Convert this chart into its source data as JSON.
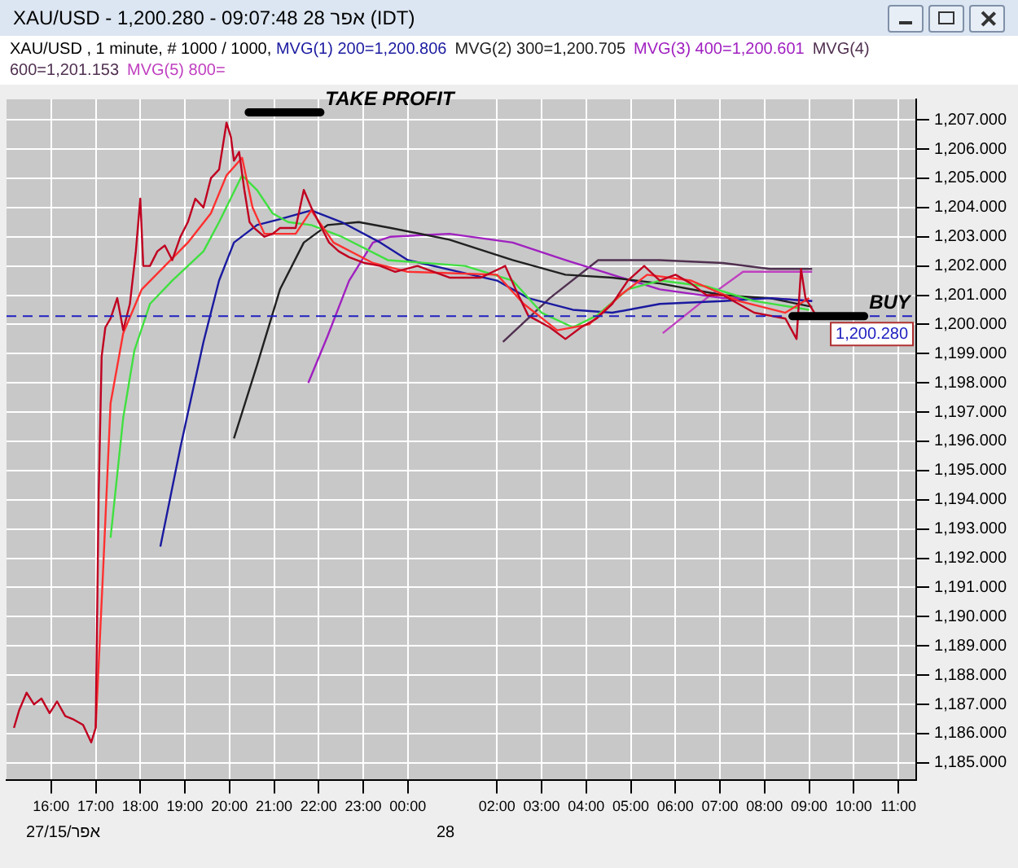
{
  "chart_data": {
    "type": "line",
    "title": "XAU/USD - 1,200.280 - 09:07:48 28 אפר (IDT)",
    "subtitle": "XAU/USD , 1 minute, # 1000 / 1000,",
    "legend": "top",
    "grid": true,
    "marker": "none",
    "line_style": "solid",
    "xlim": [
      "--04-27T15:00",
      "--04-28T11:24"
    ],
    "xticks": [
      {
        "value": "--04-27T16:00",
        "label": "16:00"
      },
      {
        "value": "--04-27T17:00",
        "label": "17:00"
      },
      {
        "value": "--04-27T18:00",
        "label": "18:00"
      },
      {
        "value": "--04-27T19:00",
        "label": "19:00"
      },
      {
        "value": "--04-27T20:00",
        "label": "20:00"
      },
      {
        "value": "--04-27T21:00",
        "label": "21:00"
      },
      {
        "value": "--04-27T22:00",
        "label": "22:00"
      },
      {
        "value": "--04-27T23:00",
        "label": "23:00"
      },
      {
        "value": "--04-28T00:00",
        "label": "00:00"
      },
      {
        "value": "--04-28T02:00",
        "label": "02:00"
      },
      {
        "value": "--04-28T03:00",
        "label": "03:00"
      },
      {
        "value": "--04-28T04:00",
        "label": "04:00"
      },
      {
        "value": "--04-28T05:00",
        "label": "05:00"
      },
      {
        "value": "--04-28T06:00",
        "label": "06:00"
      },
      {
        "value": "--04-28T07:00",
        "label": "07:00"
      },
      {
        "value": "--04-28T08:00",
        "label": "08:00"
      },
      {
        "value": "--04-28T09:00",
        "label": "09:00"
      },
      {
        "value": "--04-28T10:00",
        "label": "10:00"
      },
      {
        "value": "--04-28T11:00",
        "label": "11:00"
      }
    ],
    "ylim": [
      1184.4,
      1207.7
    ],
    "yticks": [
      {
        "value": 1185,
        "label": "1,185.000"
      },
      {
        "value": 1186,
        "label": "1,186.000"
      },
      {
        "value": 1187,
        "label": "1,187.000"
      },
      {
        "value": 1188,
        "label": "1,188.000"
      },
      {
        "value": 1189,
        "label": "1,189.000"
      },
      {
        "value": 1190,
        "label": "1,190.000"
      },
      {
        "value": 1191,
        "label": "1,191.000"
      },
      {
        "value": 1192,
        "label": "1,192.000"
      },
      {
        "value": 1193,
        "label": "1,193.000"
      },
      {
        "value": 1194,
        "label": "1,194.000"
      },
      {
        "value": 1195,
        "label": "1,195.000"
      },
      {
        "value": 1196,
        "label": "1,196.000"
      },
      {
        "value": 1197,
        "label": "1,197.000"
      },
      {
        "value": 1198,
        "label": "1,198.000"
      },
      {
        "value": 1199,
        "label": "1,199.000"
      },
      {
        "value": 1200,
        "label": "1,200.000"
      },
      {
        "value": 1201,
        "label": "1,201.000"
      },
      {
        "value": 1202,
        "label": "1,202.000"
      },
      {
        "value": 1203,
        "label": "1,203.000"
      },
      {
        "value": 1204,
        "label": "1,204.000"
      },
      {
        "value": 1205,
        "label": "1,205.000"
      },
      {
        "value": 1206,
        "label": "1,206.000"
      },
      {
        "value": 1207,
        "label": "1,207.000"
      }
    ],
    "ref_lines": [
      {
        "axis": "y",
        "value": 1200.28,
        "label": "1,200.280",
        "color": "#2020c0",
        "line_style": "dashed"
      }
    ],
    "annotations": [
      "TAKE PROFIT",
      {
        "text": "BUY",
        "x": "--04-28T10:14",
        "y": 1200.28
      },
      "27/15/אפר",
      "28"
    ],
    "series": [
      {
        "color": "#c00020",
        "x": [
          "--04-27T15:10",
          "--04-27T15:17",
          "--04-27T15:27",
          "--04-27T15:37",
          "--04-27T15:47",
          "--04-27T15:58",
          "--04-27T16:08",
          "--04-27T16:19",
          "--04-27T16:29",
          "--04-27T16:43",
          "--04-27T16:54",
          "--04-27T17:00",
          "--04-27T17:04",
          "--04-27T17:08",
          "--04-27T17:13",
          "--04-27T17:20",
          "--04-27T17:29",
          "--04-27T17:37",
          "--04-27T17:46",
          "--04-27T17:54",
          "--04-27T18:00",
          "--04-27T18:04",
          "--04-27T18:13",
          "--04-27T18:23",
          "--04-27T18:33",
          "--04-27T18:43",
          "--04-27T18:54",
          "--04-27T19:04",
          "--04-27T19:14",
          "--04-27T19:25",
          "--04-27T19:35",
          "--04-27T19:46",
          "--04-27T19:56",
          "--04-27T20:02",
          "--04-27T20:06",
          "--04-27T20:13",
          "--04-27T20:20",
          "--04-27T20:27",
          "--04-27T20:33",
          "--04-27T20:47",
          "--04-27T20:58",
          "--04-27T21:08",
          "--04-27T21:29",
          "--04-27T21:40",
          "--04-27T21:50",
          "--04-27T22:00",
          "--04-27T22:14",
          "--04-27T22:27",
          "--04-27T22:41",
          "--04-27T23:02",
          "--04-27T23:23",
          "--04-27T23:43",
          "--04-28T00:13",
          "--04-28T00:56",
          "--04-28T01:38",
          "--04-28T02:11",
          "--04-28T02:25",
          "--04-28T02:42",
          "--04-28T03:11",
          "--04-28T03:32",
          "--04-28T03:53",
          "--04-28T04:14",
          "--04-28T04:35",
          "--04-28T04:48",
          "--04-28T04:56",
          "--04-28T05:18",
          "--04-28T05:39",
          "--04-28T06:00",
          "--04-28T06:21",
          "--04-28T06:42",
          "--04-28T07:04",
          "--04-28T07:25",
          "--04-28T07:46",
          "--04-28T08:07",
          "--04-28T08:28",
          "--04-28T08:43",
          "--04-28T08:49",
          "--04-28T08:55",
          "--04-28T09:07"
        ],
        "values": [
          1186.2,
          1186.8,
          1187.4,
          1187.0,
          1187.2,
          1186.7,
          1187.1,
          1186.6,
          1186.5,
          1186.3,
          1185.7,
          1186.2,
          1194.2,
          1198.9,
          1199.9,
          1200.2,
          1200.9,
          1199.8,
          1200.7,
          1202.5,
          1204.3,
          1202.0,
          1202.0,
          1202.5,
          1202.7,
          1202.2,
          1203.0,
          1203.5,
          1204.3,
          1204.0,
          1205.0,
          1205.3,
          1206.9,
          1206.4,
          1205.6,
          1205.9,
          1204.6,
          1203.5,
          1203.3,
          1203.0,
          1203.1,
          1203.3,
          1203.3,
          1204.6,
          1204.0,
          1203.5,
          1202.8,
          1202.5,
          1202.3,
          1202.1,
          1202.0,
          1201.8,
          1202.0,
          1201.6,
          1201.6,
          1202.0,
          1201.2,
          1200.3,
          1199.9,
          1199.5,
          1199.9,
          1200.2,
          1200.7,
          1201.2,
          1201.5,
          1202.0,
          1201.5,
          1201.7,
          1201.4,
          1201.0,
          1201.0,
          1200.7,
          1200.4,
          1200.3,
          1200.2,
          1199.5,
          1201.9,
          1200.9,
          1200.4
        ]
      },
      {
        "color": "#ff3030",
        "x": [
          "--04-27T17:00",
          "--04-27T17:10",
          "--04-27T17:20",
          "--04-27T17:37",
          "--04-27T18:02",
          "--04-27T18:33",
          "--04-27T19:04",
          "--04-27T19:35",
          "--04-27T19:56",
          "--04-27T20:17",
          "--04-27T20:31",
          "--04-27T20:47",
          "--04-27T21:29",
          "--04-27T21:50",
          "--04-27T22:20",
          "--04-27T23:13",
          "--04-28T00:00",
          "--04-28T02:00",
          "--04-28T02:36",
          "--04-28T03:21",
          "--04-28T04:04",
          "--04-28T04:46",
          "--04-28T05:22",
          "--04-28T06:21",
          "--04-28T07:25",
          "--04-28T08:28",
          "--04-28T09:00"
        ],
        "values": [
          1186.2,
          1191.6,
          1197.3,
          1199.7,
          1201.2,
          1202.0,
          1202.8,
          1203.8,
          1205.1,
          1205.7,
          1204.0,
          1203.1,
          1203.1,
          1203.9,
          1202.8,
          1202.1,
          1201.8,
          1201.7,
          1200.7,
          1199.8,
          1200.0,
          1201.0,
          1201.7,
          1201.5,
          1200.8,
          1200.4,
          1200.9
        ]
      },
      {
        "color": "#40e040",
        "x": [
          "--04-27T17:20",
          "--04-27T17:37",
          "--04-27T17:52",
          "--04-27T18:13",
          "--04-27T18:43",
          "--04-27T19:25",
          "--04-27T19:46",
          "--04-27T20:17",
          "--04-27T20:37",
          "--04-27T20:58",
          "--04-27T21:19",
          "--04-27T21:50",
          "--04-27T22:31",
          "--04-27T23:33",
          "--04-28T01:17",
          "--04-28T02:21",
          "--04-28T03:00",
          "--04-28T03:42",
          "--04-28T04:14",
          "--04-28T04:56",
          "--04-28T05:39",
          "--04-28T06:42",
          "--04-28T07:46",
          "--04-28T09:00"
        ],
        "values": [
          1192.7,
          1196.8,
          1199.1,
          1200.7,
          1201.5,
          1202.5,
          1203.5,
          1205.1,
          1204.6,
          1203.8,
          1203.5,
          1203.4,
          1203.0,
          1202.2,
          1202.0,
          1201.5,
          1200.4,
          1199.9,
          1200.3,
          1201.2,
          1201.5,
          1201.3,
          1200.8,
          1200.5
        ]
      },
      {
        "name": "MVG(1) 200=1,200.806",
        "color": "#1a1aa0",
        "x": [
          "--04-27T18:27",
          "--04-27T18:54",
          "--04-27T19:25",
          "--04-27T19:46",
          "--04-27T20:06",
          "--04-27T20:37",
          "--04-27T21:08",
          "--04-27T21:50",
          "--04-27T22:31",
          "--04-27T23:23",
          "--04-28T00:00",
          "--04-28T02:00",
          "--04-28T02:42",
          "--04-28T03:42",
          "--04-28T04:35",
          "--04-28T05:39",
          "--04-28T07:04",
          "--04-28T08:07",
          "--04-28T09:04"
        ],
        "values": [
          1192.4,
          1195.8,
          1199.4,
          1201.5,
          1202.8,
          1203.4,
          1203.6,
          1203.9,
          1203.5,
          1202.8,
          1202.2,
          1201.5,
          1200.9,
          1200.5,
          1200.4,
          1200.7,
          1200.8,
          1200.9,
          1200.8
        ]
      },
      {
        "name": "MVG(2) 300=1,200.705",
        "color": "#202020",
        "x": [
          "--04-27T20:06",
          "--04-27T20:37",
          "--04-27T21:08",
          "--04-27T21:40",
          "--04-27T22:12",
          "--04-27T22:54",
          "--04-27T23:37",
          "--04-28T00:56",
          "--04-28T02:21",
          "--04-28T03:32",
          "--04-28T04:35",
          "--04-28T05:39",
          "--04-28T07:04",
          "--04-28T08:07",
          "--04-28T09:04"
        ],
        "values": [
          1196.1,
          1198.6,
          1201.2,
          1202.8,
          1203.4,
          1203.5,
          1203.3,
          1202.9,
          1202.2,
          1201.7,
          1201.6,
          1201.4,
          1201.0,
          1200.9,
          1200.6
        ]
      },
      {
        "name": "MVG(3) 400=1,200.601",
        "color": "#a020c0",
        "x": [
          "--04-27T21:46",
          "--04-27T22:12",
          "--04-27T22:41",
          "--04-27T23:13",
          "--04-27T23:37",
          "--04-28T00:56",
          "--04-28T02:21",
          "--04-28T03:32",
          "--04-28T04:35",
          "--04-28T05:39",
          "--04-28T07:04",
          "--04-28T08:07",
          "--04-28T09:04"
        ],
        "values": [
          1198.0,
          1199.6,
          1201.5,
          1202.8,
          1203.0,
          1203.1,
          1202.8,
          1202.2,
          1201.7,
          1201.2,
          1200.9,
          1200.9,
          1200.8
        ]
      },
      {
        "name": "MVG(4) 600=1,201.153",
        "color": "#503050",
        "x": [
          "--04-28T02:08",
          "--04-28T03:11",
          "--04-28T04:16",
          "--04-28T05:39",
          "--04-28T07:04",
          "--04-28T08:07",
          "--04-28T09:04"
        ],
        "values": [
          1199.4,
          1200.9,
          1202.2,
          1202.2,
          1202.1,
          1201.9,
          1201.9
        ]
      },
      {
        "name": "MVG(5) 800=",
        "color": "#c040c0",
        "x": [
          "--04-28T05:43",
          "--04-28T06:42",
          "--04-28T07:31",
          "--04-28T09:04"
        ],
        "values": [
          1199.7,
          1200.9,
          1201.8,
          1201.8
        ]
      }
    ]
  }
}
